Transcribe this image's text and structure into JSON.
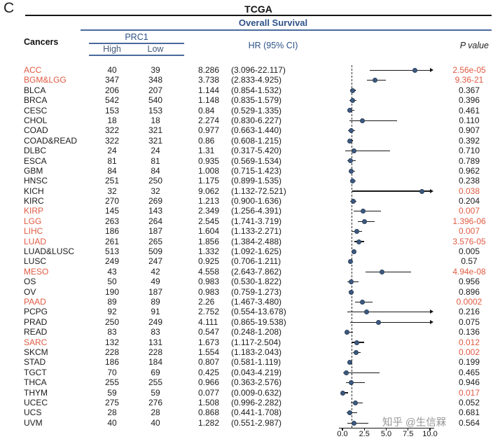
{
  "panel_label": "C",
  "title": "TCGA",
  "subtitle": "Overall Survival",
  "watermark": "知乎 @生信槑",
  "header": {
    "cancers": "Cancers",
    "group": "PRC1",
    "high": "High",
    "low": "Low",
    "hr_ci": "HR (95% CI)",
    "p_value": "P value"
  },
  "colors": {
    "accent_blue": "#2e5288",
    "rule_blue": "#4a6a9c",
    "highlight_red": "#e05a42",
    "dot_fill": "#3d5a80",
    "text": "#1b1b1b"
  },
  "chart_data": {
    "type": "scatter",
    "subtype": "forest_plot",
    "title": "TCGA",
    "subtitle": "Overall Survival",
    "xlabel": "",
    "ylabel": "",
    "x_axis": {
      "ticks": [
        "0.0",
        "2.5",
        "5.0",
        "7.5",
        "10.0"
      ],
      "tick_values": [
        0,
        2.5,
        5,
        7.5,
        10
      ],
      "range": [
        0,
        10
      ],
      "reference_line": 1
    },
    "rows": [
      {
        "cancer": "ACC",
        "high": "40",
        "low": "39",
        "hr": "8.286",
        "ci": "(3.096-22.117)",
        "p": "2.56e-05",
        "hr_value": 8.286,
        "ci_low": 3.096,
        "ci_high": 22.117,
        "name_red": true,
        "p_red": true
      },
      {
        "cancer": "BGM&LGG",
        "high": "347",
        "low": "348",
        "hr": "3.738",
        "ci": "(2.833-4.925)",
        "p": "9.36-21",
        "hr_value": 3.738,
        "ci_low": 2.833,
        "ci_high": 4.925,
        "name_red": true,
        "p_red": true
      },
      {
        "cancer": "BLCA",
        "high": "206",
        "low": "207",
        "hr": "1.144",
        "ci": "(0.854-1.532)",
        "p": "0.367",
        "hr_value": 1.144,
        "ci_low": 0.854,
        "ci_high": 1.532,
        "name_red": false,
        "p_red": false
      },
      {
        "cancer": "BRCA",
        "high": "542",
        "low": "540",
        "hr": "1.148",
        "ci": "(0.835-1.579)",
        "p": "0.396",
        "hr_value": 1.148,
        "ci_low": 0.835,
        "ci_high": 1.579,
        "name_red": false,
        "p_red": false
      },
      {
        "cancer": "CESC",
        "high": "153",
        "low": "153",
        "hr": "0.84",
        "ci": "(0.529-1.335)",
        "p": "0.461",
        "hr_value": 0.84,
        "ci_low": 0.529,
        "ci_high": 1.335,
        "name_red": false,
        "p_red": false
      },
      {
        "cancer": "CHOL",
        "high": "18",
        "low": "18",
        "hr": "2.274",
        "ci": "(0.830-6.227)",
        "p": "0.110",
        "hr_value": 2.274,
        "ci_low": 0.83,
        "ci_high": 6.227,
        "name_red": false,
        "p_red": false
      },
      {
        "cancer": "COAD",
        "high": "322",
        "low": "321",
        "hr": "0.977",
        "ci": "(0.663-1.440)",
        "p": "0.907",
        "hr_value": 0.977,
        "ci_low": 0.663,
        "ci_high": 1.44,
        "name_red": false,
        "p_red": false
      },
      {
        "cancer": "COAD&READ",
        "high": "322",
        "low": "321",
        "hr": "0.86",
        "ci": "(0.608-1.215)",
        "p": "0.392",
        "hr_value": 0.86,
        "ci_low": 0.608,
        "ci_high": 1.215,
        "name_red": false,
        "p_red": false
      },
      {
        "cancer": "DLBC",
        "high": "24",
        "low": "24",
        "hr": "1.31",
        "ci": "(0.317-5.420)",
        "p": "0.710",
        "hr_value": 1.31,
        "ci_low": 0.317,
        "ci_high": 5.42,
        "name_red": false,
        "p_red": false
      },
      {
        "cancer": "ESCA",
        "high": "81",
        "low": "81",
        "hr": "0.935",
        "ci": "(0.569-1.534)",
        "p": "0.789",
        "hr_value": 0.935,
        "ci_low": 0.569,
        "ci_high": 1.534,
        "name_red": false,
        "p_red": false
      },
      {
        "cancer": "GBM",
        "high": "84",
        "low": "84",
        "hr": "1.008",
        "ci": "(0.715-1.423)",
        "p": "0.962",
        "hr_value": 1.008,
        "ci_low": 0.715,
        "ci_high": 1.423,
        "name_red": false,
        "p_red": false
      },
      {
        "cancer": "HNSC",
        "high": "251",
        "low": "250",
        "hr": "1.175",
        "ci": "(0.899-1.535)",
        "p": "0.238",
        "hr_value": 1.175,
        "ci_low": 0.899,
        "ci_high": 1.535,
        "name_red": false,
        "p_red": false
      },
      {
        "cancer": "KICH",
        "high": "32",
        "low": "32",
        "hr": "9.062",
        "ci": "(1.132-72.521)",
        "p": "0.038",
        "hr_value": 9.062,
        "ci_low": 1.132,
        "ci_high": 72.521,
        "name_red": false,
        "p_red": true
      },
      {
        "cancer": "KIRC",
        "high": "270",
        "low": "269",
        "hr": "1.213",
        "ci": "(0.900-1.636)",
        "p": "0.204",
        "hr_value": 1.213,
        "ci_low": 0.9,
        "ci_high": 1.636,
        "name_red": false,
        "p_red": false
      },
      {
        "cancer": "KIRP",
        "high": "145",
        "low": "143",
        "hr": "2.349",
        "ci": "(1.256-4.391)",
        "p": "0.007",
        "hr_value": 2.349,
        "ci_low": 1.256,
        "ci_high": 4.391,
        "name_red": true,
        "p_red": true
      },
      {
        "cancer": "LGG",
        "high": "263",
        "low": "264",
        "hr": "2.545",
        "ci": "(1.741-3.719)",
        "p": "1.396-06",
        "hr_value": 2.545,
        "ci_low": 1.741,
        "ci_high": 3.719,
        "name_red": true,
        "p_red": true
      },
      {
        "cancer": "LIHC",
        "high": "186",
        "low": "187",
        "hr": "1.604",
        "ci": "(1.133-2.271)",
        "p": "0.007",
        "hr_value": 1.604,
        "ci_low": 1.133,
        "ci_high": 2.271,
        "name_red": true,
        "p_red": true
      },
      {
        "cancer": "LUAD",
        "high": "261",
        "low": "265",
        "hr": "1.856",
        "ci": "(1.384-2.488)",
        "p": "3.576-05",
        "hr_value": 1.856,
        "ci_low": 1.384,
        "ci_high": 2.488,
        "name_red": true,
        "p_red": true
      },
      {
        "cancer": "LUAD&LUSC",
        "high": "513",
        "low": "509",
        "hr": "1.332",
        "ci": "(1.092-1.625)",
        "p": "0.005",
        "hr_value": 1.332,
        "ci_low": 1.092,
        "ci_high": 1.625,
        "name_red": false,
        "p_red": false
      },
      {
        "cancer": "LUSC",
        "high": "249",
        "low": "247",
        "hr": "0.925",
        "ci": "(0.706-1.211)",
        "p": "0.57",
        "hr_value": 0.925,
        "ci_low": 0.706,
        "ci_high": 1.211,
        "name_red": false,
        "p_red": false
      },
      {
        "cancer": "MESO",
        "high": "43",
        "low": "42",
        "hr": "4.558",
        "ci": "(2.643-7.862)",
        "p": "4.94e-08",
        "hr_value": 4.558,
        "ci_low": 2.643,
        "ci_high": 7.862,
        "name_red": true,
        "p_red": true
      },
      {
        "cancer": "OS",
        "high": "50",
        "low": "49",
        "hr": "0.983",
        "ci": "(0.530-1.822)",
        "p": "0.956",
        "hr_value": 0.983,
        "ci_low": 0.53,
        "ci_high": 1.822,
        "name_red": false,
        "p_red": false
      },
      {
        "cancer": "OV",
        "high": "190",
        "low": "187",
        "hr": "0.983",
        "ci": "(0.759-1.273)",
        "p": "0.896",
        "hr_value": 0.983,
        "ci_low": 0.759,
        "ci_high": 1.273,
        "name_red": false,
        "p_red": false
      },
      {
        "cancer": "PAAD",
        "high": "89",
        "low": "89",
        "hr": "2.26",
        "ci": "(1.467-3.480)",
        "p": "0.0002",
        "hr_value": 2.26,
        "ci_low": 1.467,
        "ci_high": 3.48,
        "name_red": true,
        "p_red": true
      },
      {
        "cancer": "PCPG",
        "high": "92",
        "low": "91",
        "hr": "2.752",
        "ci": "(0.554-13.678)",
        "p": "0.216",
        "hr_value": 2.752,
        "ci_low": 0.554,
        "ci_high": 13.678,
        "name_red": false,
        "p_red": false
      },
      {
        "cancer": "PRAD",
        "high": "250",
        "low": "249",
        "hr": "4.111",
        "ci": "(0.865-19.538)",
        "p": "0.075",
        "hr_value": 4.111,
        "ci_low": 0.865,
        "ci_high": 19.538,
        "name_red": false,
        "p_red": false
      },
      {
        "cancer": "READ",
        "high": "83",
        "low": "83",
        "hr": "0.547",
        "ci": "(0.248-1.208)",
        "p": "0.136",
        "hr_value": 0.547,
        "ci_low": 0.248,
        "ci_high": 1.208,
        "name_red": false,
        "p_red": false
      },
      {
        "cancer": "SARC",
        "high": "132",
        "low": "131",
        "hr": "1.673",
        "ci": "(1.117-2.504)",
        "p": "0.012",
        "hr_value": 1.673,
        "ci_low": 1.117,
        "ci_high": 2.504,
        "name_red": true,
        "p_red": true
      },
      {
        "cancer": "SKCM",
        "high": "228",
        "low": "228",
        "hr": "1.554",
        "ci": "(1.183-2.043)",
        "p": "0.002",
        "hr_value": 1.554,
        "ci_low": 1.183,
        "ci_high": 2.043,
        "name_red": false,
        "p_red": true
      },
      {
        "cancer": "STAD",
        "high": "186",
        "low": "184",
        "hr": "0.807",
        "ci": "(0.581-1.119)",
        "p": "0.199",
        "hr_value": 0.807,
        "ci_low": 0.581,
        "ci_high": 1.119,
        "name_red": false,
        "p_red": false
      },
      {
        "cancer": "TGCT",
        "high": "70",
        "low": "69",
        "hr": "0.425",
        "ci": "(0.043-4.219)",
        "p": "0.465",
        "hr_value": 0.425,
        "ci_low": 0.043,
        "ci_high": 4.219,
        "name_red": false,
        "p_red": false
      },
      {
        "cancer": "THCA",
        "high": "255",
        "low": "255",
        "hr": "0.966",
        "ci": "(0.363-2.576)",
        "p": "0.946",
        "hr_value": 0.966,
        "ci_low": 0.363,
        "ci_high": 2.576,
        "name_red": false,
        "p_red": false
      },
      {
        "cancer": "THYM",
        "high": "59",
        "low": "59",
        "hr": "0.077",
        "ci": "(0.009-0.632)",
        "p": "0.017",
        "hr_value": 0.077,
        "ci_low": 0.009,
        "ci_high": 0.632,
        "name_red": false,
        "p_red": true
      },
      {
        "cancer": "UCEC",
        "high": "275",
        "low": "276",
        "hr": "1.508",
        "ci": "(0.996-2.282)",
        "p": "0.052",
        "hr_value": 1.508,
        "ci_low": 0.996,
        "ci_high": 2.282,
        "name_red": false,
        "p_red": false
      },
      {
        "cancer": "UCS",
        "high": "28",
        "low": "28",
        "hr": "0.868",
        "ci": "(0.441-1.708)",
        "p": "0.681",
        "hr_value": 0.868,
        "ci_low": 0.441,
        "ci_high": 1.708,
        "name_red": false,
        "p_red": false
      },
      {
        "cancer": "UVM",
        "high": "40",
        "low": "40",
        "hr": "1.282",
        "ci": "(0.551-2.987)",
        "p": "0.564",
        "hr_value": 1.282,
        "ci_low": 0.551,
        "ci_high": 2.987,
        "name_red": false,
        "p_red": false
      }
    ]
  }
}
